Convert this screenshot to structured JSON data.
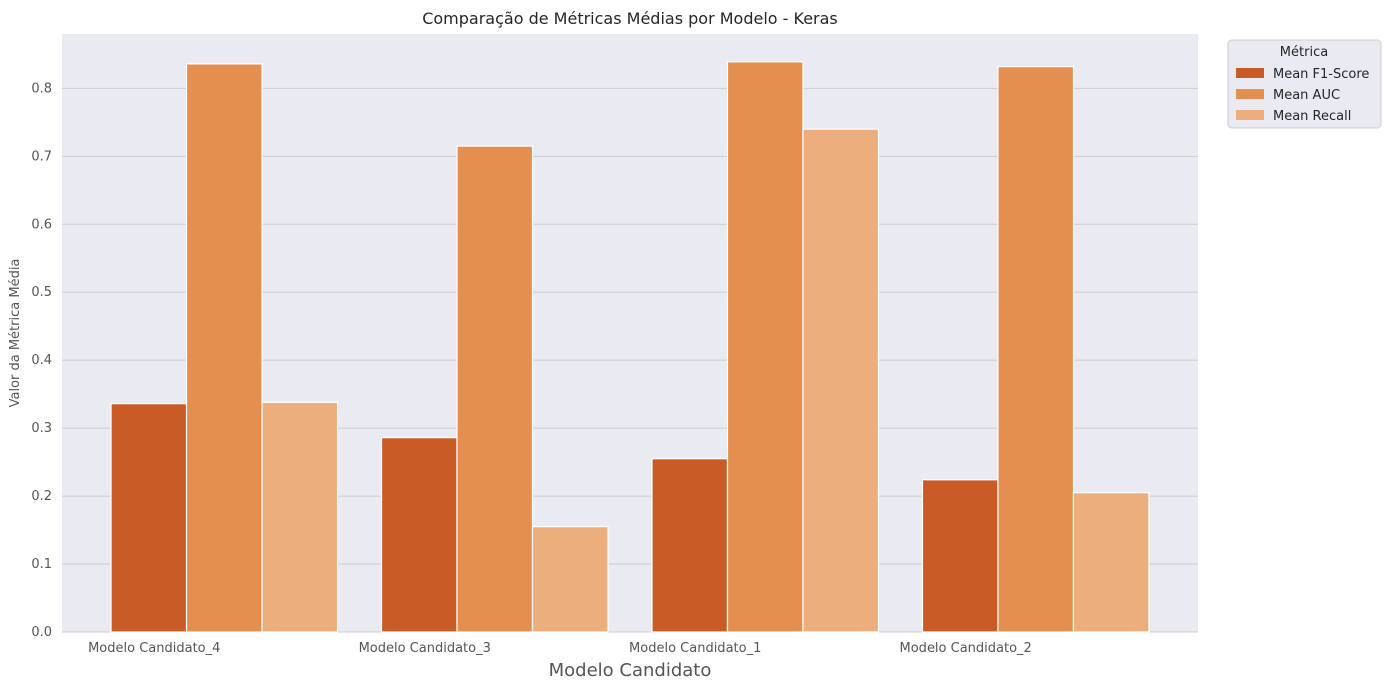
{
  "chart_data": {
    "type": "bar",
    "title": "Comparação de Métricas Médias por Modelo - Keras",
    "xlabel": "Modelo Candidato",
    "ylabel": "Valor da Métrica Média",
    "categories": [
      "Modelo Candidato_4",
      "Modelo Candidato_3",
      "Modelo Candidato_1",
      "Modelo Candidato_2"
    ],
    "series": [
      {
        "name": "Mean F1-Score",
        "values": [
          0.336,
          0.286,
          0.255,
          0.224
        ],
        "color": "#c95c26"
      },
      {
        "name": "Mean AUC",
        "values": [
          0.836,
          0.715,
          0.839,
          0.832
        ],
        "color": "#e48e4f"
      },
      {
        "name": "Mean Recall",
        "values": [
          0.338,
          0.155,
          0.74,
          0.205
        ],
        "color": "#ebae7c"
      }
    ],
    "ylim": [
      0,
      0.88
    ],
    "yticks": [
      "0.0",
      "0.1",
      "0.2",
      "0.3",
      "0.4",
      "0.5",
      "0.6",
      "0.7",
      "0.8"
    ],
    "grid": true,
    "legend": {
      "title": "Métrica",
      "placement": "outside-top-right"
    },
    "colors": {
      "plot_background": "#eaeaf2",
      "grid": "#cccccc"
    }
  }
}
